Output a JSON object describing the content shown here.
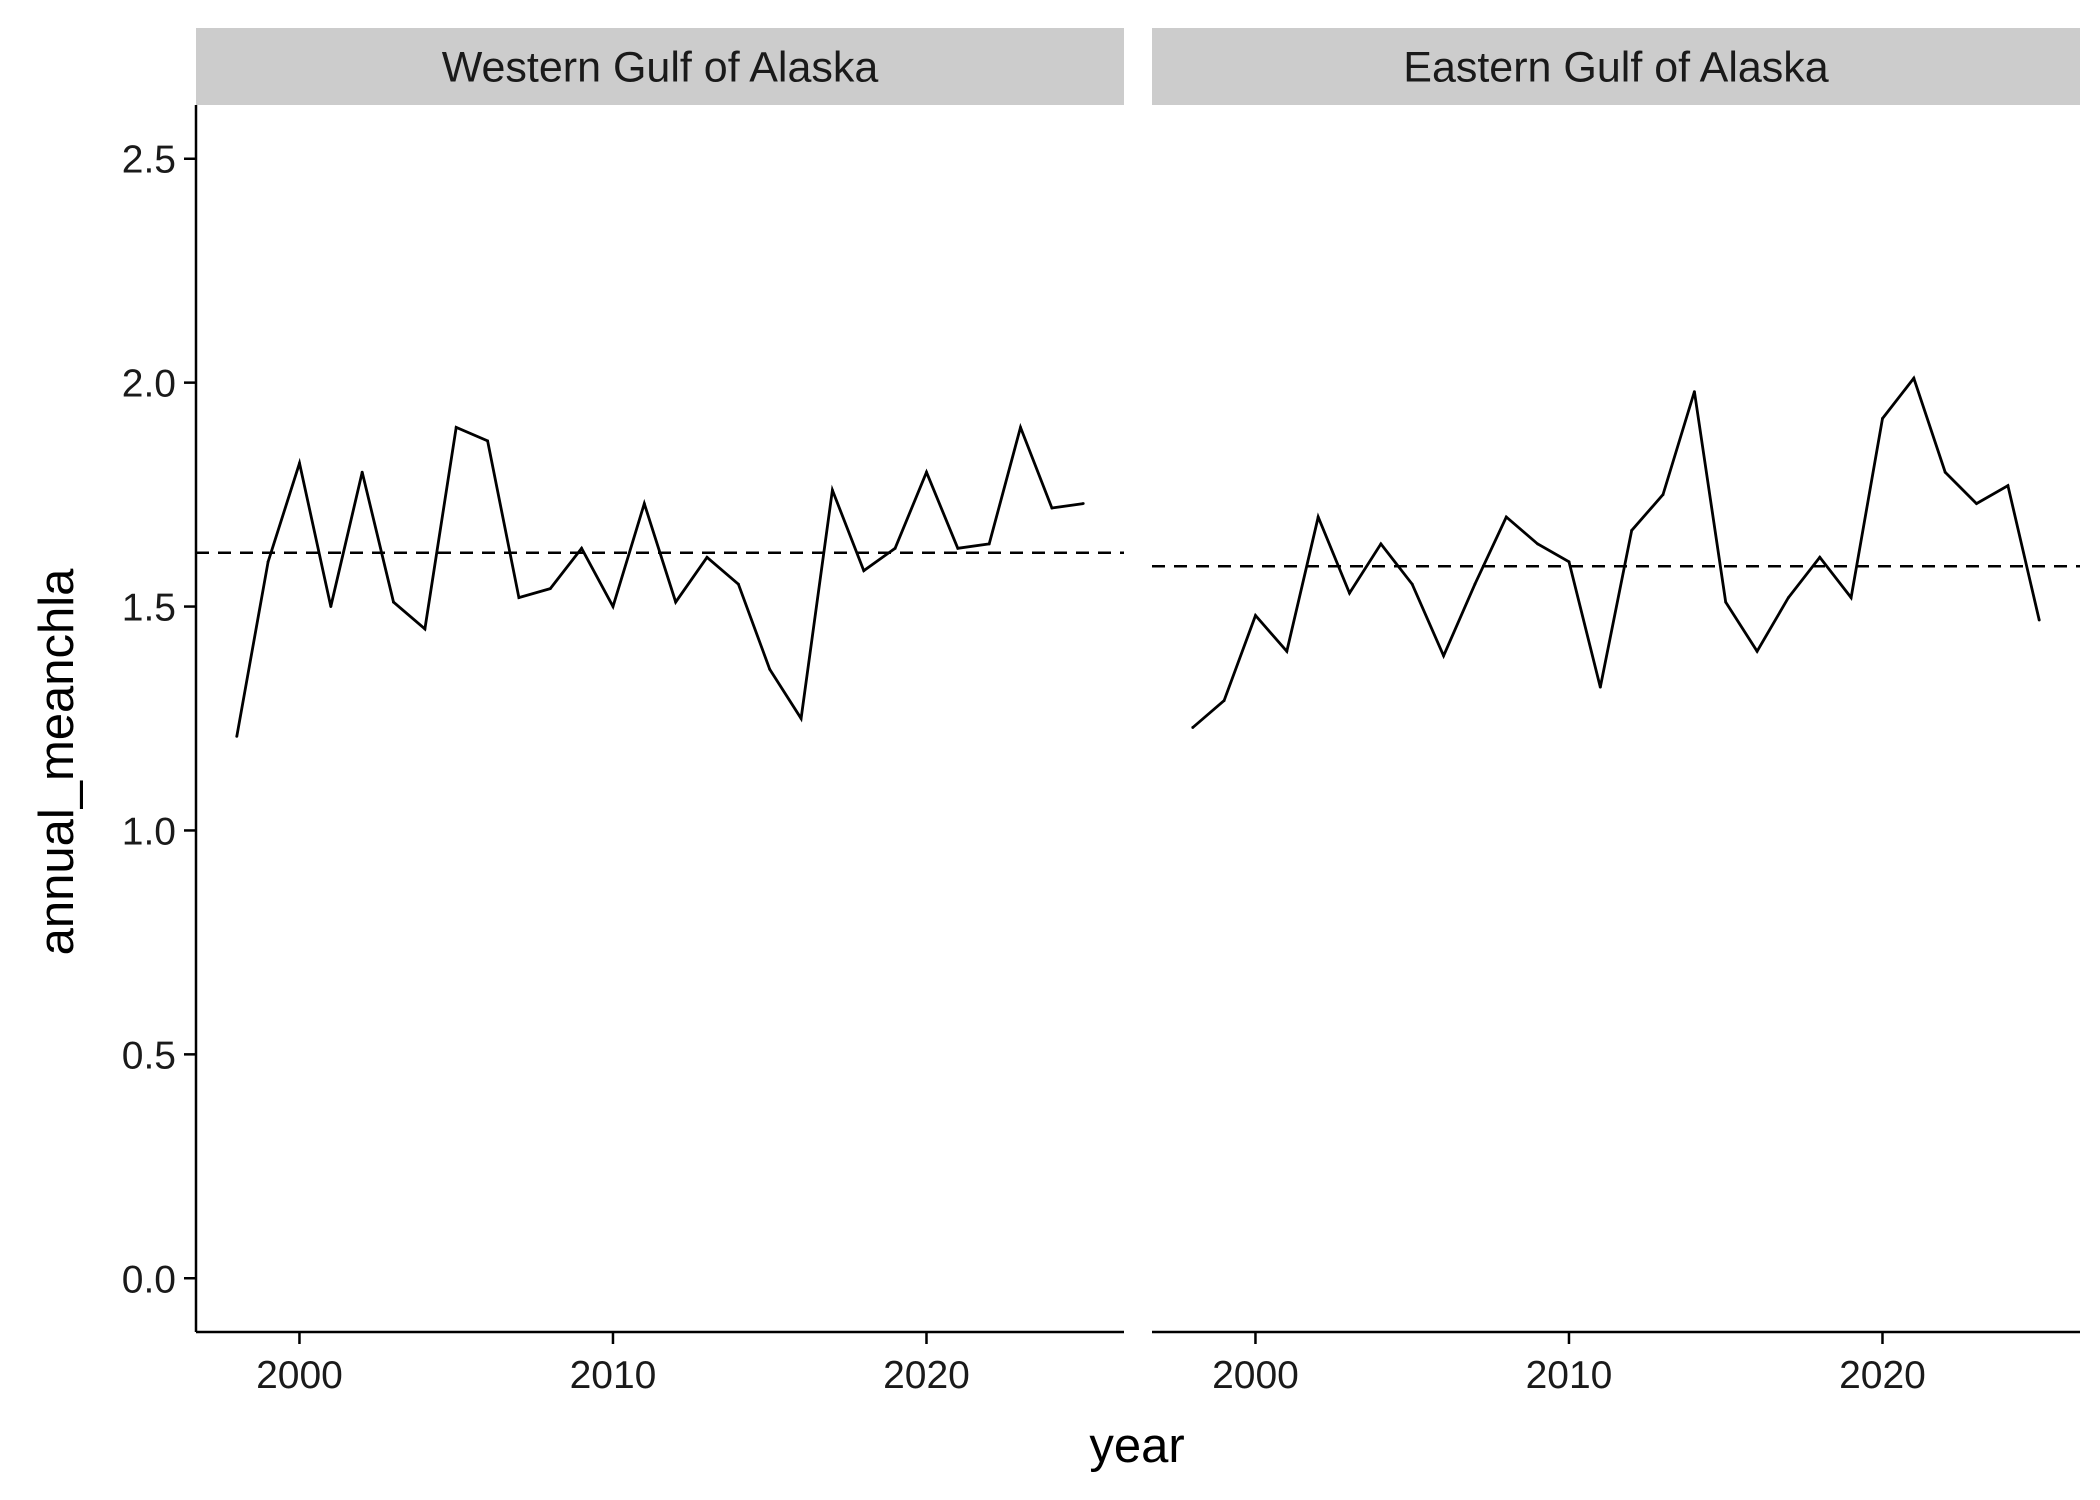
{
  "chart_data": {
    "type": "line",
    "xlabel": "year",
    "ylabel": "annual_meanchla",
    "xlim": [
      1996.7,
      2026.3
    ],
    "ylim": [
      -0.12,
      2.62
    ],
    "x_ticks": [
      2000,
      2010,
      2020
    ],
    "y_ticks": [
      "0.0",
      "0.5",
      "1.0",
      "1.5",
      "2.0",
      "2.5"
    ],
    "grid": false,
    "legend": "none",
    "panels": [
      {
        "title": "Western Gulf of Alaska",
        "x": [
          1998,
          1999,
          2000,
          2001,
          2002,
          2003,
          2004,
          2005,
          2006,
          2007,
          2008,
          2009,
          2010,
          2011,
          2012,
          2013,
          2014,
          2015,
          2016,
          2017,
          2018,
          2019,
          2020,
          2021,
          2022,
          2023,
          2024,
          2025
        ],
        "values": [
          1.21,
          1.6,
          1.82,
          1.5,
          1.8,
          1.51,
          1.45,
          1.9,
          1.87,
          1.52,
          1.54,
          1.63,
          1.5,
          1.73,
          1.51,
          1.61,
          1.55,
          1.36,
          1.25,
          1.76,
          1.58,
          1.63,
          1.8,
          1.63,
          1.64,
          1.9,
          1.72,
          1.73
        ],
        "reference_line": 1.62
      },
      {
        "title": "Eastern Gulf of Alaska",
        "x": [
          1998,
          1999,
          2000,
          2001,
          2002,
          2003,
          2004,
          2005,
          2006,
          2007,
          2008,
          2009,
          2010,
          2011,
          2012,
          2013,
          2014,
          2015,
          2016,
          2017,
          2018,
          2019,
          2020,
          2021,
          2022,
          2023,
          2024,
          2025
        ],
        "values": [
          1.23,
          1.29,
          1.48,
          1.4,
          1.7,
          1.53,
          1.64,
          1.55,
          1.39,
          1.55,
          1.7,
          1.64,
          1.6,
          1.32,
          1.67,
          1.75,
          1.98,
          1.51,
          1.4,
          1.52,
          1.61,
          1.52,
          1.92,
          2.01,
          1.8,
          1.73,
          1.77,
          1.47
        ],
        "reference_line": 1.59
      }
    ]
  },
  "style": {
    "line_color": "#000000",
    "strip_fill": "#cccccc",
    "axis_color": "#000000"
  }
}
